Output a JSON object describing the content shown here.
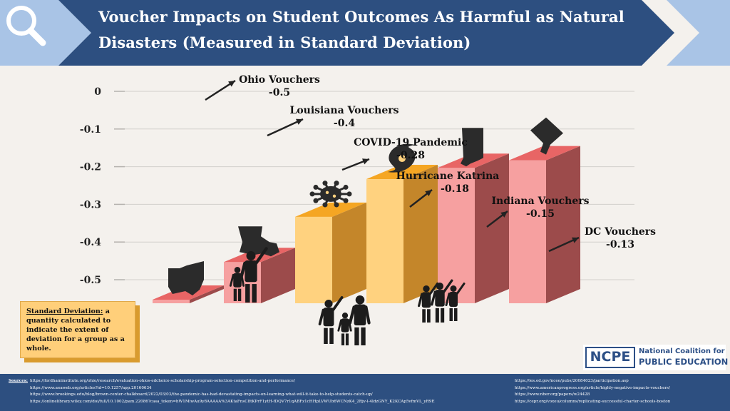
{
  "header": {
    "title": "Voucher Impacts on Student Outcomes As Harmful as Natural Disasters (Measured in Standard Deviation)",
    "colors": {
      "banner": "#2d4f80",
      "chevron": "#a9c4e6"
    }
  },
  "chart_data": {
    "type": "bar",
    "title": "Voucher Impacts on Student Outcomes As Harmful as Natural Disasters (Measured in Standard Deviation)",
    "categories": [
      "Ohio Vouchers",
      "Louisiana Vouchers",
      "COVID-19 Pandemic",
      "Hurricane Katrina",
      "Indiana Vouchers",
      "DC Vouchers"
    ],
    "values": [
      -0.5,
      -0.4,
      -0.28,
      -0.18,
      -0.15,
      -0.13
    ],
    "value_labels": [
      "-0.5",
      "-0.4",
      "-0.28",
      "-0.18",
      "-0.15",
      "-0.13"
    ],
    "icons": [
      "ohio-state-icon",
      "louisiana-state-icon",
      "virus-icon",
      "hurricane-icon",
      "indiana-state-icon",
      "dc-map-icon"
    ],
    "colors": [
      "pink",
      "pink",
      "orange",
      "orange",
      "pink",
      "pink"
    ],
    "yticks": [
      0,
      -0.1,
      -0.2,
      -0.3,
      -0.4,
      -0.5
    ],
    "ytick_labels": [
      "0",
      "-0.1",
      "-0.2",
      "-0.3",
      "-0.4",
      "-0.5"
    ],
    "ylim": [
      -0.5,
      0
    ],
    "grid": true,
    "xlabel": "",
    "ylabel": ""
  },
  "palette": {
    "pink": {
      "front": "#f6a0a0",
      "side": "#9c4b4b",
      "top": "#e86565"
    },
    "orange": {
      "front": "#ffd27f",
      "side": "#c4862a",
      "top": "#f5a623"
    }
  },
  "info_box": {
    "term": "Standard Deviation:",
    "definition": "a quantity calculated to indicate the extent of deviation for a group as a whole."
  },
  "logo": {
    "abbr": "NCPE",
    "line1": "National Coalition for",
    "line2": "PUBLIC EDUCATION"
  },
  "sources": {
    "label": "Sources",
    "left": [
      "https://fordhaminstitute.org/ohio/research/evaluation-ohios-edchoice-scholarship-program-selection-competition-and-performance/",
      "https://www.aeaweb.org/articles?id=10.1257/app.20160634",
      "https://www.brookings.edu/blog/brown-center-chalkboard/2022/03/03/the-pandemic-has-had-devastating-impacts-on-learning-what-will-it-take-to-help-students-catch-up/",
      "https://onlinelibrary.wiley.com/doi/full/10.1002/pam.22086?casa_token=hW1MiwAu9y8AAAAA%3AKtaFnsC8tKPrF1ytH-fDQV7r1qABFz1cHHpLVWUb6WCNzK4_2Rjv-l-4ldzGNY_K2KCAp5vfmVL_yR9E"
    ],
    "right": [
      "https://ies.ed.gov/ncee/pubs/20084023/participation.asp",
      "https://www.americanprogress.org/article/highly-negative-impacts-vouchers/",
      "https://www.nber.org/papers/w24428",
      "https://cepr.org/voxeu/columns/replicating-successful-charter-schools-boston"
    ]
  }
}
